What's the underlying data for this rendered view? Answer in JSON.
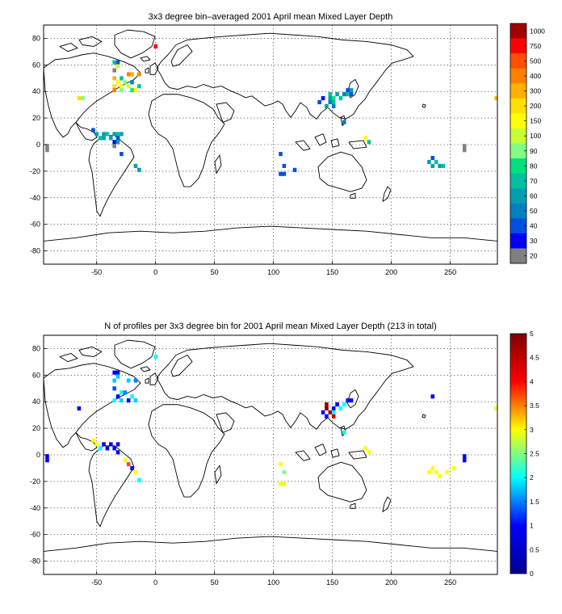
{
  "chart_data": [
    {
      "type": "heatmap",
      "title": "3x3 degree bin–averaged 2001 April mean Mixed Layer Depth",
      "xlabel": "",
      "ylabel": "",
      "xlim": [
        -95,
        290
      ],
      "ylim": [
        -90,
        90
      ],
      "xticks": [
        "-50",
        "0",
        "50",
        "100",
        "150",
        "200",
        "250"
      ],
      "yticks": [
        "80",
        "60",
        "40",
        "20",
        "0",
        "-20",
        "-40",
        "-60",
        "-80"
      ],
      "grid": true,
      "colorbar": {
        "labels": [
          "1000",
          "750",
          "500",
          "400",
          "300",
          "200",
          "150",
          "100",
          "90",
          "80",
          "70",
          "60",
          "50",
          "40",
          "30",
          "20"
        ],
        "colors": [
          "#a00000",
          "#ff0000",
          "#ff5000",
          "#ff8000",
          "#ffb000",
          "#ffe000",
          "#ffff00",
          "#c8ff32",
          "#80ff80",
          "#00e080",
          "#00c0a0",
          "#00a0b0",
          "#0080c0",
          "#0050e0",
          "#0000ff",
          "#808080"
        ]
      },
      "bins": [
        {
          "lon": 0,
          "lat": 74,
          "c": "#ff0000"
        },
        {
          "lon": -35,
          "lat": 62,
          "c": "#00c0a0"
        },
        {
          "lon": -32,
          "lat": 62,
          "c": "#0050e0"
        },
        {
          "lon": -32,
          "lat": 59,
          "c": "#c8ff32"
        },
        {
          "lon": -35,
          "lat": 56,
          "c": "#808080"
        },
        {
          "lon": -23,
          "lat": 53,
          "c": "#ff8000"
        },
        {
          "lon": -20,
          "lat": 53,
          "c": "#ffb000"
        },
        {
          "lon": -14,
          "lat": 53,
          "c": "#ff8000"
        },
        {
          "lon": -35,
          "lat": 50,
          "c": "#ffb000"
        },
        {
          "lon": -29,
          "lat": 50,
          "c": "#00c0a0"
        },
        {
          "lon": -32,
          "lat": 47,
          "c": "#ffff00"
        },
        {
          "lon": -26,
          "lat": 47,
          "c": "#80ff80"
        },
        {
          "lon": -20,
          "lat": 47,
          "c": "#0080c0"
        },
        {
          "lon": -35,
          "lat": 44,
          "c": "#ffe000"
        },
        {
          "lon": -29,
          "lat": 44,
          "c": "#ffff00"
        },
        {
          "lon": -23,
          "lat": 44,
          "c": "#c8ff32"
        },
        {
          "lon": -14,
          "lat": 44,
          "c": "#00c0a0"
        },
        {
          "lon": -35,
          "lat": 41,
          "c": "#ff8000"
        },
        {
          "lon": -29,
          "lat": 41,
          "c": "#80ff80"
        },
        {
          "lon": -20,
          "lat": 41,
          "c": "#00e080"
        },
        {
          "lon": -17,
          "lat": 41,
          "c": "#ffff00"
        },
        {
          "lon": -65,
          "lat": 35,
          "c": "#ffe000"
        },
        {
          "lon": -62,
          "lat": 35,
          "c": "#80ff80"
        },
        {
          "lon": -53,
          "lat": 11,
          "c": "#0050e0"
        },
        {
          "lon": -50,
          "lat": 8,
          "c": "#00a0b0"
        },
        {
          "lon": -44,
          "lat": 8,
          "c": "#00a0b0"
        },
        {
          "lon": -41,
          "lat": 8,
          "c": "#00c0a0"
        },
        {
          "lon": -35,
          "lat": 8,
          "c": "#00a0b0"
        },
        {
          "lon": -32,
          "lat": 8,
          "c": "#00c0a0"
        },
        {
          "lon": -29,
          "lat": 8,
          "c": "#00a0b0"
        },
        {
          "lon": -47,
          "lat": 5,
          "c": "#00c0a0"
        },
        {
          "lon": -44,
          "lat": 5,
          "c": "#00a0b0"
        },
        {
          "lon": -38,
          "lat": 5,
          "c": "#00a0b0"
        },
        {
          "lon": -32,
          "lat": 5,
          "c": "#0050e0"
        },
        {
          "lon": -35,
          "lat": 2,
          "c": "#0000ff"
        },
        {
          "lon": -32,
          "lat": 2,
          "c": "#00a0b0"
        },
        {
          "lon": -35,
          "lat": -1,
          "c": "#808080"
        },
        {
          "lon": -29,
          "lat": -7,
          "c": "#0050e0"
        },
        {
          "lon": -17,
          "lat": -16,
          "c": "#00a0b0"
        },
        {
          "lon": -14,
          "lat": -19,
          "c": "#00a0b0"
        },
        {
          "lon": -92,
          "lat": -1,
          "c": "#808080"
        },
        {
          "lon": -92,
          "lat": -4,
          "c": "#808080"
        },
        {
          "lon": 163,
          "lat": 41,
          "c": "#0050e0"
        },
        {
          "lon": 166,
          "lat": 41,
          "c": "#00a0b0"
        },
        {
          "lon": 148,
          "lat": 38,
          "c": "#00c0a0"
        },
        {
          "lon": 154,
          "lat": 38,
          "c": "#00a0b0"
        },
        {
          "lon": 160,
          "lat": 38,
          "c": "#0080c0"
        },
        {
          "lon": 163,
          "lat": 38,
          "c": "#00c0a0"
        },
        {
          "lon": 166,
          "lat": 38,
          "c": "#0050e0"
        },
        {
          "lon": 142,
          "lat": 35,
          "c": "#0000ff"
        },
        {
          "lon": 148,
          "lat": 35,
          "c": "#00a0b0"
        },
        {
          "lon": 151,
          "lat": 35,
          "c": "#00e080"
        },
        {
          "lon": 157,
          "lat": 35,
          "c": "#00c0a0"
        },
        {
          "lon": 139,
          "lat": 32,
          "c": "#0050e0"
        },
        {
          "lon": 148,
          "lat": 32,
          "c": "#0080c0"
        },
        {
          "lon": 151,
          "lat": 32,
          "c": "#00c0a0"
        },
        {
          "lon": 145,
          "lat": 29,
          "c": "#00a0b0"
        },
        {
          "lon": 151,
          "lat": 29,
          "c": "#0080c0"
        },
        {
          "lon": 160,
          "lat": 17,
          "c": "#0080c0"
        },
        {
          "lon": 178,
          "lat": 5,
          "c": "#ffff00"
        },
        {
          "lon": 181,
          "lat": 2,
          "c": "#00c0a0"
        },
        {
          "lon": 106,
          "lat": -7,
          "c": "#0050e0"
        },
        {
          "lon": 109,
          "lat": -16,
          "c": "#0050e0"
        },
        {
          "lon": 118,
          "lat": -19,
          "c": "#0050e0"
        },
        {
          "lon": 106,
          "lat": -22,
          "c": "#0050e0"
        },
        {
          "lon": 109,
          "lat": -22,
          "c": "#0050e0"
        },
        {
          "lon": 235,
          "lat": -10,
          "c": "#0050e0"
        },
        {
          "lon": 232,
          "lat": -13,
          "c": "#00a0b0"
        },
        {
          "lon": 238,
          "lat": -13,
          "c": "#00c0a0"
        },
        {
          "lon": 235,
          "lat": -16,
          "c": "#00a0b0"
        },
        {
          "lon": 241,
          "lat": -16,
          "c": "#00a0b0"
        },
        {
          "lon": 244,
          "lat": -16,
          "c": "#00c0a0"
        },
        {
          "lon": 262,
          "lat": -1,
          "c": "#808080"
        },
        {
          "lon": 262,
          "lat": -4,
          "c": "#808080"
        },
        {
          "lon": 289,
          "lat": 35,
          "c": "#ffb000"
        }
      ]
    },
    {
      "type": "heatmap",
      "title": "N of profiles per 3x3 degree bin for 2001 April mean Mixed Layer Depth  (213 in total)",
      "xlabel": "",
      "ylabel": "",
      "xlim": [
        -95,
        290
      ],
      "ylim": [
        -90,
        90
      ],
      "xticks": [
        "-50",
        "0",
        "50",
        "100",
        "150",
        "200",
        "250"
      ],
      "yticks": [
        "80",
        "60",
        "40",
        "20",
        "0",
        "-20",
        "-40",
        "-60",
        "-80"
      ],
      "grid": true,
      "colorbar": {
        "labels": [
          "5",
          "4.5",
          "4",
          "3.5",
          "3",
          "2.5",
          "2",
          "1.5",
          "1",
          "0.5",
          "0"
        ],
        "min": 0,
        "max": 5,
        "stops": [
          "#00008f",
          "#0000ff",
          "#00ffff",
          "#ffff00",
          "#ff0000",
          "#800000"
        ]
      },
      "bins": [
        {
          "lon": 0,
          "lat": 74,
          "v": 2
        },
        {
          "lon": -35,
          "lat": 62,
          "v": 0.8
        },
        {
          "lon": -32,
          "lat": 62,
          "v": 0.8
        },
        {
          "lon": -32,
          "lat": 59,
          "v": 1.8
        },
        {
          "lon": -35,
          "lat": 56,
          "v": 1.8
        },
        {
          "lon": -23,
          "lat": 56,
          "v": 1.8
        },
        {
          "lon": -17,
          "lat": 56,
          "v": 1.5
        },
        {
          "lon": -35,
          "lat": 50,
          "v": 1.3
        },
        {
          "lon": -29,
          "lat": 47,
          "v": 2
        },
        {
          "lon": -26,
          "lat": 47,
          "v": 1.5
        },
        {
          "lon": -32,
          "lat": 44,
          "v": 1
        },
        {
          "lon": -20,
          "lat": 44,
          "v": 2
        },
        {
          "lon": -35,
          "lat": 41,
          "v": 2
        },
        {
          "lon": -29,
          "lat": 41,
          "v": 1.8
        },
        {
          "lon": -23,
          "lat": 41,
          "v": 1
        },
        {
          "lon": -17,
          "lat": 41,
          "v": 1.8
        },
        {
          "lon": -65,
          "lat": 35,
          "v": 1
        },
        {
          "lon": -53,
          "lat": 11,
          "v": 3
        },
        {
          "lon": -50,
          "lat": 8,
          "v": 3
        },
        {
          "lon": -44,
          "lat": 8,
          "v": 1
        },
        {
          "lon": -38,
          "lat": 8,
          "v": 1
        },
        {
          "lon": -32,
          "lat": 8,
          "v": 1
        },
        {
          "lon": -47,
          "lat": 5,
          "v": 2
        },
        {
          "lon": -41,
          "lat": 5,
          "v": 1
        },
        {
          "lon": -35,
          "lat": 5,
          "v": 1
        },
        {
          "lon": -32,
          "lat": 2,
          "v": 1
        },
        {
          "lon": -26,
          "lat": -4,
          "v": 3
        },
        {
          "lon": -23,
          "lat": -7,
          "v": 3.7
        },
        {
          "lon": -20,
          "lat": -10,
          "v": 1
        },
        {
          "lon": -17,
          "lat": -13,
          "v": 3
        },
        {
          "lon": -14,
          "lat": -19,
          "v": 2
        },
        {
          "lon": -92,
          "lat": -1,
          "v": 1
        },
        {
          "lon": -92,
          "lat": -4,
          "v": 1
        },
        {
          "lon": 163,
          "lat": 41,
          "v": 1
        },
        {
          "lon": 166,
          "lat": 41,
          "v": 1
        },
        {
          "lon": 145,
          "lat": 38,
          "v": 4.8
        },
        {
          "lon": 154,
          "lat": 38,
          "v": 1
        },
        {
          "lon": 160,
          "lat": 38,
          "v": 2
        },
        {
          "lon": 145,
          "lat": 35,
          "v": 5
        },
        {
          "lon": 151,
          "lat": 35,
          "v": 1
        },
        {
          "lon": 157,
          "lat": 35,
          "v": 2
        },
        {
          "lon": 142,
          "lat": 32,
          "v": 1
        },
        {
          "lon": 148,
          "lat": 32,
          "v": 4.7
        },
        {
          "lon": 151,
          "lat": 32,
          "v": 2
        },
        {
          "lon": 145,
          "lat": 29,
          "v": 1
        },
        {
          "lon": 151,
          "lat": 29,
          "v": 4.5
        },
        {
          "lon": 160,
          "lat": 17,
          "v": 2
        },
        {
          "lon": 178,
          "lat": 5,
          "v": 3
        },
        {
          "lon": 181,
          "lat": 2,
          "v": 3
        },
        {
          "lon": 106,
          "lat": -7,
          "v": 3
        },
        {
          "lon": 109,
          "lat": -13,
          "v": 2.5
        },
        {
          "lon": 106,
          "lat": -22,
          "v": 3
        },
        {
          "lon": 109,
          "lat": -22,
          "v": 3
        },
        {
          "lon": 235,
          "lat": -10,
          "v": 3
        },
        {
          "lon": 232,
          "lat": -13,
          "v": 3
        },
        {
          "lon": 238,
          "lat": -13,
          "v": 3
        },
        {
          "lon": 241,
          "lat": -16,
          "v": 3
        },
        {
          "lon": 247,
          "lat": -13,
          "v": 3
        },
        {
          "lon": 253,
          "lat": -10,
          "v": 3
        },
        {
          "lon": 262,
          "lat": -1,
          "v": 1
        },
        {
          "lon": 262,
          "lat": -4,
          "v": 1
        },
        {
          "lon": 235,
          "lat": 44,
          "v": 1
        },
        {
          "lon": 289,
          "lat": 35,
          "v": 3
        }
      ]
    }
  ]
}
